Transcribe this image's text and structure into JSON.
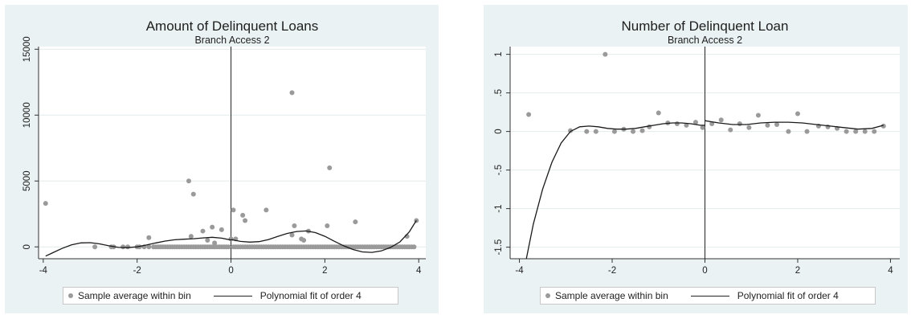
{
  "chart_data": [
    {
      "type": "scatter",
      "title": "Amount of Delinquent Loans",
      "subtitle": "Branch Access 2",
      "xlim": [
        -4.1,
        4.15
      ],
      "ylim": [
        -900,
        15200
      ],
      "xticks": [
        -4,
        -2,
        0,
        2,
        4
      ],
      "xtick_labels": [
        "-4",
        "-2",
        "0",
        "2",
        "4"
      ],
      "yticks": [
        0,
        5000,
        10000,
        15000
      ],
      "ytick_labels": [
        "0",
        "5000",
        "10000",
        "15000"
      ],
      "cutoff_x": 0,
      "grid": true,
      "legend_position": "bottom",
      "series": [
        {
          "name": "Sample average within bin",
          "kind": "points",
          "x": [
            -3.95,
            -2.9,
            -2.55,
            -2.5,
            -2.3,
            -2.2,
            -2.0,
            -1.95,
            -1.85,
            -1.75,
            -1.65,
            -1.6,
            -1.55,
            -1.5,
            -1.45,
            -1.4,
            -1.35,
            -1.3,
            -1.25,
            -1.2,
            -1.15,
            -1.1,
            -1.05,
            -1.0,
            -0.95,
            -0.9,
            -0.85,
            -0.8,
            -0.75,
            -0.7,
            -0.65,
            -0.6,
            -0.55,
            -0.5,
            -0.45,
            -0.4,
            -0.35,
            -0.3,
            -0.25,
            -0.2,
            -0.15,
            -0.1,
            -0.05,
            0.05,
            0.1,
            0.15,
            0.2,
            0.25,
            0.3,
            0.35,
            0.4,
            0.45,
            0.5,
            0.55,
            0.6,
            0.65,
            0.7,
            0.75,
            0.8,
            0.85,
            0.9,
            0.95,
            1.0,
            1.05,
            1.1,
            1.15,
            1.2,
            1.25,
            1.3,
            1.35,
            1.4,
            1.45,
            1.5,
            1.55,
            1.6,
            1.65,
            1.7,
            1.75,
            1.8,
            1.85,
            1.9,
            1.95,
            2.0,
            2.05,
            2.1,
            2.15,
            2.2,
            2.25,
            2.3,
            2.35,
            2.4,
            2.45,
            2.5,
            2.55,
            2.6,
            2.65,
            2.7,
            2.75,
            2.8,
            2.85,
            2.9,
            2.95,
            3.0,
            3.05,
            3.1,
            3.15,
            3.2,
            3.25,
            3.3,
            3.35,
            3.4,
            3.45,
            3.5,
            3.55,
            3.6,
            3.65,
            3.7,
            3.75,
            3.8,
            3.85,
            3.9,
            -0.9,
            -0.8,
            -0.6,
            -0.4,
            -0.2,
            0.0,
            0.05,
            0.1,
            0.25,
            0.3,
            0.75,
            1.3,
            1.35,
            1.3,
            1.5,
            1.55,
            1.65,
            2.05,
            2.1,
            2.65,
            3.75,
            3.95,
            -1.75,
            -0.5,
            -0.35,
            -0.85
          ],
          "y": [
            3300,
            0,
            0,
            0,
            0,
            0,
            0,
            0,
            0,
            0,
            0,
            0,
            0,
            0,
            0,
            0,
            0,
            0,
            0,
            0,
            0,
            0,
            0,
            0,
            0,
            0,
            0,
            0,
            0,
            0,
            0,
            0,
            0,
            0,
            0,
            0,
            0,
            0,
            0,
            0,
            0,
            0,
            0,
            0,
            0,
            0,
            0,
            0,
            0,
            0,
            0,
            0,
            0,
            0,
            0,
            0,
            0,
            0,
            0,
            0,
            0,
            0,
            0,
            0,
            0,
            0,
            0,
            0,
            0,
            0,
            0,
            0,
            0,
            0,
            0,
            0,
            0,
            0,
            0,
            0,
            0,
            0,
            0,
            0,
            0,
            0,
            0,
            0,
            0,
            0,
            0,
            0,
            0,
            0,
            0,
            0,
            0,
            0,
            0,
            0,
            0,
            0,
            0,
            0,
            0,
            0,
            0,
            0,
            0,
            0,
            0,
            0,
            0,
            0,
            0,
            0,
            0,
            0,
            0,
            0,
            0,
            5000,
            4000,
            1200,
            1500,
            1300,
            600,
            2800,
            600,
            2400,
            2000,
            2800,
            11700,
            1600,
            900,
            600,
            500,
            1200,
            1600,
            6000,
            1900,
            800,
            2000,
            700,
            500,
            300,
            800
          ]
        },
        {
          "name": "Polynomial fit of order 4",
          "kind": "line",
          "x": [
            -3.95,
            -3.8,
            -3.6,
            -3.4,
            -3.2,
            -3.0,
            -2.8,
            -2.6,
            -2.4,
            -2.2,
            -2.0,
            -1.8,
            -1.6,
            -1.4,
            -1.2,
            -1.0,
            -0.8,
            -0.6,
            -0.4,
            -0.2,
            0.0,
            0.0,
            0.2,
            0.4,
            0.6,
            0.8,
            1.0,
            1.2,
            1.4,
            1.6,
            1.8,
            2.0,
            2.2,
            2.4,
            2.6,
            2.8,
            3.0,
            3.2,
            3.4,
            3.6,
            3.8,
            3.95
          ],
          "y": [
            -700,
            -450,
            -120,
            150,
            300,
            320,
            230,
            80,
            -40,
            -60,
            0,
            140,
            300,
            440,
            540,
            580,
            620,
            680,
            730,
            660,
            520,
            560,
            420,
            360,
            400,
            560,
            800,
            1020,
            1170,
            1210,
            1080,
            800,
            430,
            80,
            -200,
            -380,
            -420,
            -310,
            -40,
            380,
            1150,
            2000
          ]
        }
      ]
    },
    {
      "type": "scatter",
      "title": "Number of Delinquent Loan",
      "subtitle": "Branch Access 2",
      "xlim": [
        -4.2,
        4.2
      ],
      "ylim": [
        -1.65,
        1.1
      ],
      "xticks": [
        -4,
        -2,
        0,
        2,
        4
      ],
      "xtick_labels": [
        "-4",
        "-2",
        "0",
        "2",
        "4"
      ],
      "yticks": [
        -1.5,
        -1,
        -0.5,
        0,
        0.5,
        1
      ],
      "ytick_labels": [
        "-1.5",
        "-1",
        "-.5",
        "0",
        ".5",
        "1"
      ],
      "cutoff_x": 0,
      "grid": true,
      "legend_position": "bottom",
      "series": [
        {
          "name": "Sample average within bin",
          "kind": "points",
          "x": [
            -3.8,
            -2.9,
            -2.55,
            -2.35,
            -2.15,
            -1.95,
            -1.75,
            -1.55,
            -1.35,
            -1.2,
            -1.0,
            -0.8,
            -0.6,
            -0.4,
            -0.2,
            -0.05,
            0.15,
            0.35,
            0.55,
            0.75,
            0.95,
            1.15,
            1.35,
            1.55,
            1.8,
            2.0,
            2.2,
            2.45,
            2.65,
            2.85,
            3.05,
            3.25,
            3.45,
            3.65,
            3.85
          ],
          "y": [
            0.22,
            0.01,
            0.0,
            0.0,
            1.0,
            0.0,
            0.03,
            0.0,
            0.01,
            0.06,
            0.24,
            0.11,
            0.1,
            0.08,
            0.12,
            0.05,
            0.1,
            0.15,
            0.02,
            0.1,
            0.05,
            0.21,
            0.08,
            0.09,
            0.0,
            0.23,
            0.0,
            0.07,
            0.06,
            0.04,
            0.0,
            0.0,
            0.0,
            0.0,
            0.07
          ]
        },
        {
          "name": "Polynomial fit of order 4",
          "kind": "line",
          "x": [
            -3.85,
            -3.7,
            -3.5,
            -3.3,
            -3.1,
            -2.9,
            -2.7,
            -2.5,
            -2.3,
            -2.1,
            -1.9,
            -1.7,
            -1.5,
            -1.3,
            -1.1,
            -0.9,
            -0.7,
            -0.5,
            -0.3,
            -0.1,
            0.0,
            0.0,
            0.3,
            0.6,
            0.9,
            1.2,
            1.5,
            1.8,
            2.1,
            2.4,
            2.7,
            3.0,
            3.3,
            3.6,
            3.85
          ],
          "y": [
            -1.65,
            -1.2,
            -0.75,
            -0.4,
            -0.15,
            0.0,
            0.06,
            0.07,
            0.06,
            0.04,
            0.03,
            0.03,
            0.04,
            0.06,
            0.08,
            0.1,
            0.11,
            0.11,
            0.1,
            0.08,
            0.08,
            0.14,
            0.11,
            0.09,
            0.09,
            0.11,
            0.12,
            0.12,
            0.11,
            0.09,
            0.07,
            0.05,
            0.03,
            0.04,
            0.08
          ]
        }
      ]
    }
  ]
}
